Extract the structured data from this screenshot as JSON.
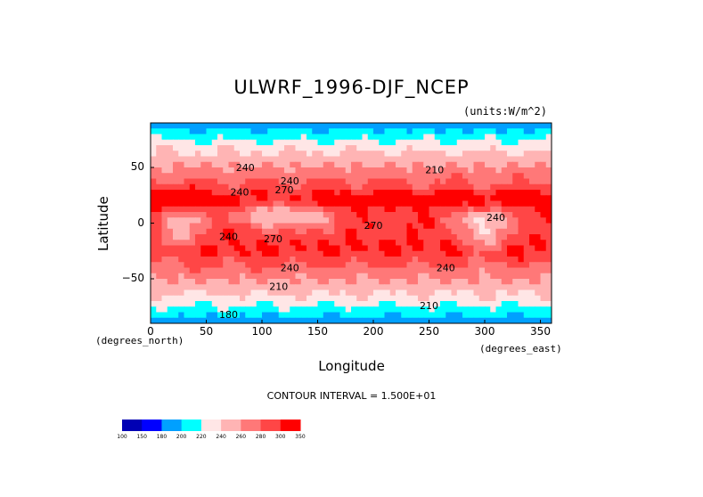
{
  "chart_data": {
    "type": "heatmap",
    "title": "ULWRF_1996-DJF_NCEP",
    "units_label": "(units:W/m^2)",
    "xlabel": "Longitude",
    "ylabel": "Latitude",
    "x_unit_label": "(degrees_east)",
    "y_unit_label": "(degrees_north)",
    "xlim": [
      0,
      360
    ],
    "ylim": [
      -90,
      90
    ],
    "x_ticks": [
      "0",
      "50",
      "100",
      "150",
      "200",
      "250",
      "300",
      "350"
    ],
    "x_tick_values": [
      0,
      50,
      100,
      150,
      200,
      250,
      300,
      350
    ],
    "y_ticks": [
      "50",
      "0",
      "−50"
    ],
    "y_tick_values": [
      50,
      0,
      -50
    ],
    "contour_interval_text": "CONTOUR INTERVAL = 1.500E+01",
    "colorbar": {
      "labels": [
        "100",
        "150",
        "180",
        "200",
        "220",
        "240",
        "260",
        "280",
        "300",
        "350"
      ],
      "colors": [
        "#0000b4",
        "#0000ff",
        "#00a0ff",
        "#00ffff",
        "#ffe6e6",
        "#ffb4b4",
        "#ff7878",
        "#ff4646",
        "#ff0000"
      ]
    },
    "contour_labels": [
      {
        "text": "210",
        "lon": 255,
        "lat": 45
      },
      {
        "text": "240",
        "lon": 85,
        "lat": 47
      },
      {
        "text": "270",
        "lon": 120,
        "lat": 27
      },
      {
        "text": "240",
        "lon": 125,
        "lat": 35
      },
      {
        "text": "240",
        "lon": 80,
        "lat": 25
      },
      {
        "text": "270",
        "lon": 200,
        "lat": -5
      },
      {
        "text": "270",
        "lon": 110,
        "lat": -17
      },
      {
        "text": "240",
        "lon": 70,
        "lat": -15
      },
      {
        "text": "240",
        "lon": 125,
        "lat": -43
      },
      {
        "text": "240",
        "lon": 265,
        "lat": -43
      },
      {
        "text": "210",
        "lon": 115,
        "lat": -60
      },
      {
        "text": "240",
        "lon": 310,
        "lat": 2
      },
      {
        "text": "180",
        "lon": 70,
        "lat": -85
      },
      {
        "text": "210",
        "lon": 250,
        "lat": -77
      }
    ]
  }
}
